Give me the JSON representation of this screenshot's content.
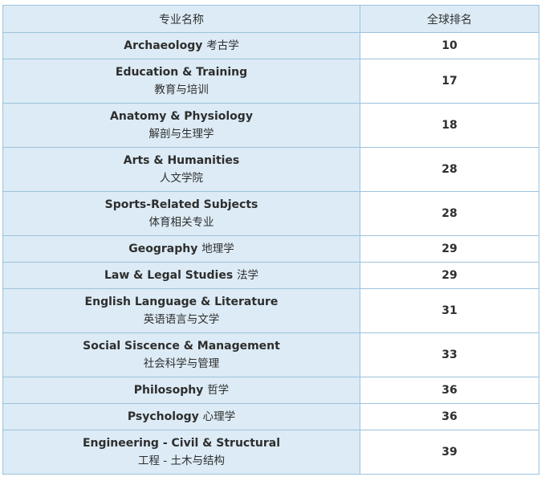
{
  "header": {
    "subject": "专业名称",
    "rank": "全球排名"
  },
  "rows": [
    {
      "en": "Archaeology",
      "cn": "考古学",
      "rank": "10",
      "layout": "single"
    },
    {
      "en": "Education & Training",
      "cn": "教育与培训",
      "rank": "17",
      "layout": "double"
    },
    {
      "en": "Anatomy & Physiology",
      "cn": "解剖与生理学",
      "rank": "18",
      "layout": "double"
    },
    {
      "en": "Arts & Humanities",
      "cn": "人文学院",
      "rank": "28",
      "layout": "double"
    },
    {
      "en": "Sports-Related Subjects",
      "cn": "体育相关专业",
      "rank": "28",
      "layout": "double"
    },
    {
      "en": "Geography",
      "cn": "地理学",
      "rank": "29",
      "layout": "single"
    },
    {
      "en": "Law & Legal Studies",
      "cn": "法学",
      "rank": "29",
      "layout": "single"
    },
    {
      "en": "English Language & Literature",
      "cn": "英语语言与文学",
      "rank": "31",
      "layout": "double"
    },
    {
      "en": "Social Siscence & Management",
      "cn": "社会科学与管理",
      "rank": "33",
      "layout": "double"
    },
    {
      "en": "Philosophy",
      "cn": "哲学",
      "rank": "36",
      "layout": "single"
    },
    {
      "en": "Psychology",
      "cn": "心理学",
      "rank": "36",
      "layout": "single"
    },
    {
      "en": "Engineering - Civil & Structural",
      "cn": "工程 - 土木与结构",
      "rank": "39",
      "layout": "double"
    }
  ]
}
